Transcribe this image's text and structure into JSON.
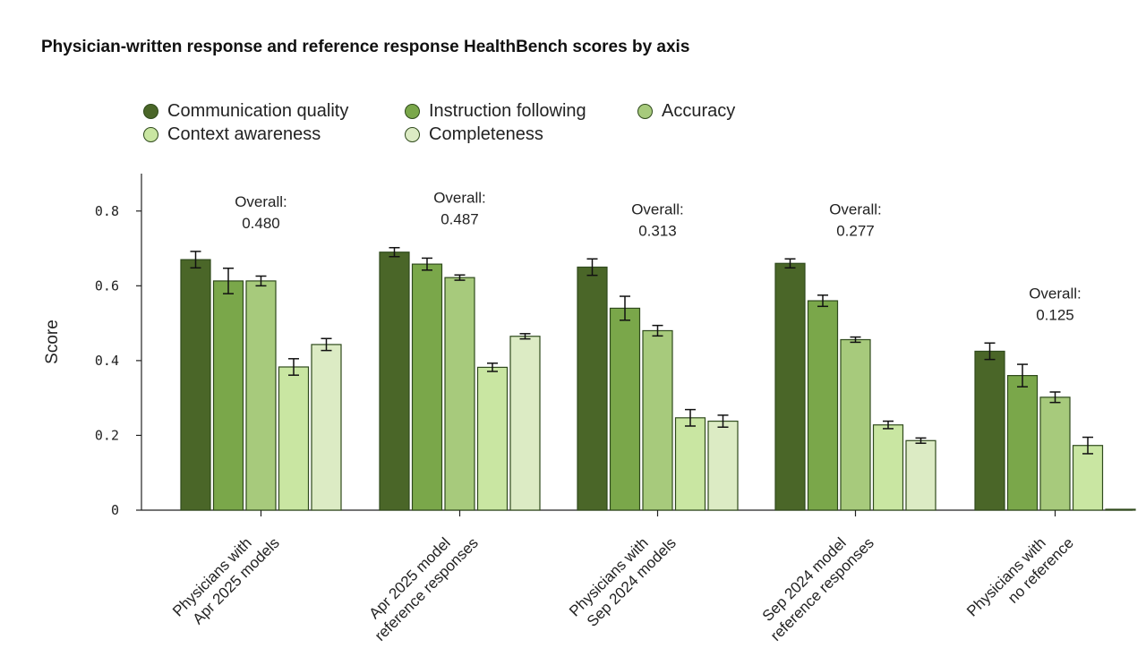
{
  "chart_data": {
    "type": "bar",
    "title": "Physician-written response and reference response HealthBench scores by axis",
    "ylabel": "Score",
    "xlabel": "",
    "ylim": [
      0,
      0.9
    ],
    "yticks": [
      0,
      0.2,
      0.4,
      0.6,
      0.8
    ],
    "ytick_labels": [
      "0",
      "0.2",
      "0.4",
      "0.6",
      "0.8"
    ],
    "categories": [
      [
        "Physicians with",
        "Apr 2025 models"
      ],
      [
        "Apr 2025 model",
        "reference responses"
      ],
      [
        "Physicians with",
        "Sep 2024 models"
      ],
      [
        "Sep 2024 model",
        "reference responses"
      ],
      [
        "Physicians with",
        "no reference"
      ]
    ],
    "overall_label": "Overall:",
    "overall": [
      "0.480",
      "0.487",
      "0.313",
      "0.277",
      "0.125"
    ],
    "series": [
      {
        "name": "Communication quality",
        "color": "#4a6628",
        "values": [
          0.67,
          0.69,
          0.65,
          0.66,
          0.425
        ],
        "errors": [
          0.022,
          0.012,
          0.022,
          0.012,
          0.022
        ]
      },
      {
        "name": "Instruction following",
        "color": "#7aa74a",
        "values": [
          0.613,
          0.658,
          0.54,
          0.56,
          0.36
        ],
        "errors": [
          0.034,
          0.016,
          0.032,
          0.015,
          0.03
        ]
      },
      {
        "name": "Accuracy",
        "color": "#a7ca7c",
        "values": [
          0.613,
          0.622,
          0.48,
          0.456,
          0.302
        ],
        "errors": [
          0.013,
          0.007,
          0.014,
          0.007,
          0.014
        ]
      },
      {
        "name": "Context awareness",
        "color": "#c9e6a2",
        "values": [
          0.383,
          0.382,
          0.247,
          0.228,
          0.173
        ],
        "errors": [
          0.022,
          0.011,
          0.022,
          0.01,
          0.022
        ]
      },
      {
        "name": "Completeness",
        "color": "#dcebc4",
        "values": [
          0.443,
          0.465,
          0.238,
          0.186,
          0.0
        ],
        "errors": [
          0.016,
          0.007,
          0.016,
          0.007,
          0.0
        ]
      }
    ],
    "legend_position": "top"
  }
}
